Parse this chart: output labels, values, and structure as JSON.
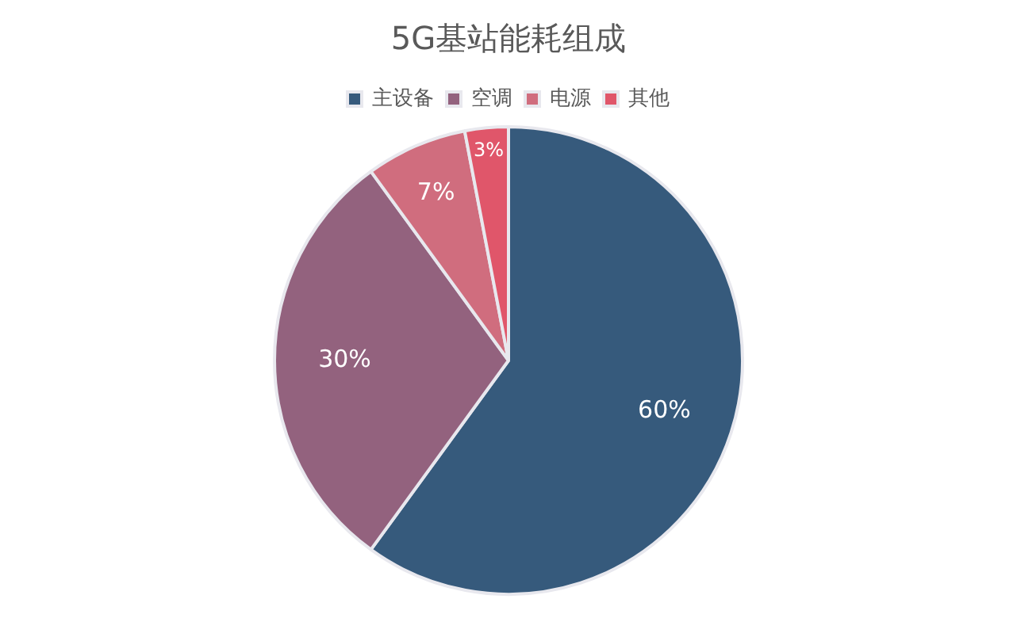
{
  "chart_data": {
    "type": "pie",
    "title": "5G基站能耗组成",
    "categories": [
      "主设备",
      "空调",
      "电源",
      "其他"
    ],
    "values": [
      60,
      30,
      7,
      3
    ],
    "colors": [
      "#365a7c",
      "#93627e",
      "#d06d7e",
      "#e0566a"
    ],
    "value_labels": [
      "60%",
      "30%",
      "7%",
      "3%"
    ],
    "legend": "top"
  }
}
